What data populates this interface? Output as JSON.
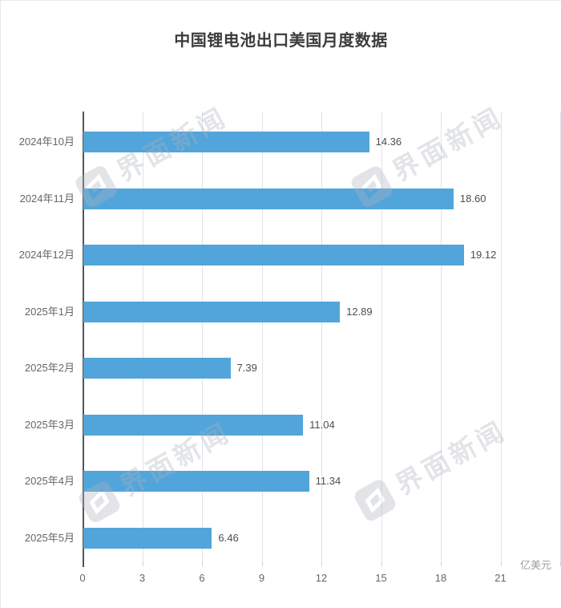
{
  "page": {
    "title": "中国锂电池出口美国月度数据"
  },
  "watermark": {
    "text": "界面新闻",
    "logo_icon": "jiemian-logo"
  },
  "colors": {
    "bar": "#52A5DA",
    "grid_line": "#DCE3EE",
    "y_axis_line": "#555555",
    "title_text": "#3C3C3C",
    "category_text": "#666666",
    "value_text": "#4D4D4D",
    "tick_text": "#666666",
    "unit_text": "#9AA0A6",
    "watermark_on_white": "#E3E4E8"
  },
  "chart_data": {
    "type": "bar",
    "orientation": "horizontal",
    "title": "中国锂电池出口美国月度数据",
    "categories": [
      "2024年10月",
      "2024年11月",
      "2024年12月",
      "2025年1月",
      "2025年2月",
      "2025年3月",
      "2025年4月",
      "2025年5月"
    ],
    "values": [
      14.36,
      18.6,
      19.12,
      12.89,
      7.39,
      11.04,
      11.34,
      6.46
    ],
    "value_labels": [
      "14.36",
      "18.60",
      "19.12",
      "12.89",
      "7.39",
      "11.04",
      "11.34",
      "6.46"
    ],
    "xticks": [
      "0",
      "3",
      "6",
      "9",
      "12",
      "15",
      "18",
      "21"
    ],
    "xlim": [
      0,
      24
    ],
    "xlabel_unit": "亿美元",
    "grid": "on",
    "legend": "none",
    "bar_color": "#52A5DA"
  }
}
